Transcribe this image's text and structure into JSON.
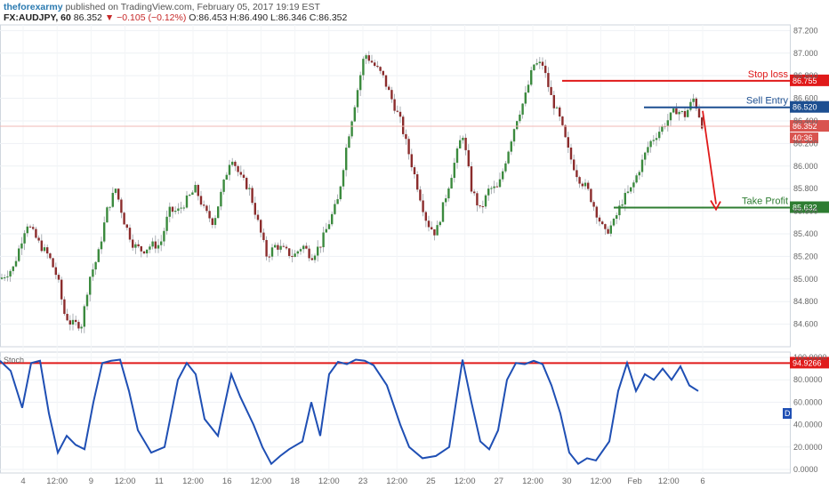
{
  "header": {
    "author": "theforexarmy",
    "published": "published on TradingView.com, February 05, 2017 19:19 EST",
    "symbol": "FX:AUDJPY, 60",
    "last": "86.352",
    "change": "▼ −0.105 (−0.12%)",
    "ohlc": "O:86.453 H:86.490 L:86.346 C:86.352"
  },
  "colors": {
    "up_candle": "#3b8a3e",
    "down_candle": "#8b2c2c",
    "stoch_line": "#1f4fb4",
    "stop_loss": "#e01a1a",
    "sell_entry": "#1d4f91",
    "take_profit": "#2e7d32",
    "arrow": "#e01a1a",
    "last_price": "#d9534f"
  },
  "chart_data": [
    {
      "type": "candlestick",
      "symbol": "FX:AUDJPY",
      "timeframe": "60",
      "ylim": [
        84.4,
        87.25
      ],
      "y_ticks": [
        "87.200",
        "87.000",
        "86.800",
        "86.600",
        "86.400",
        "86.200",
        "86.000",
        "85.800",
        "85.600",
        "85.400",
        "85.200",
        "85.000",
        "84.800",
        "84.600"
      ],
      "x_ticks": [
        "4",
        "12:00",
        "9",
        "12:00",
        "11",
        "12:00",
        "16",
        "12:00",
        "18",
        "12:00",
        "23",
        "12:00",
        "25",
        "12:00",
        "27",
        "12:00",
        "30",
        "12:00",
        "Feb",
        "12:00",
        "6"
      ],
      "path_points": [
        [
          0,
          85.0
        ],
        [
          15,
          85.1
        ],
        [
          30,
          85.5
        ],
        [
          45,
          85.3
        ],
        [
          55,
          85.2
        ],
        [
          65,
          85.0
        ],
        [
          72,
          84.7
        ],
        [
          80,
          84.6
        ],
        [
          92,
          84.6
        ],
        [
          100,
          85.0
        ],
        [
          110,
          85.2
        ],
        [
          120,
          85.6
        ],
        [
          130,
          85.8
        ],
        [
          140,
          85.5
        ],
        [
          150,
          85.3
        ],
        [
          160,
          85.25
        ],
        [
          170,
          85.3
        ],
        [
          180,
          85.3
        ],
        [
          190,
          85.6
        ],
        [
          200,
          85.6
        ],
        [
          210,
          85.7
        ],
        [
          220,
          85.8
        ],
        [
          230,
          85.6
        ],
        [
          240,
          85.5
        ],
        [
          250,
          85.8
        ],
        [
          260,
          86.1
        ],
        [
          270,
          85.9
        ],
        [
          280,
          85.8
        ],
        [
          290,
          85.5
        ],
        [
          300,
          85.2
        ],
        [
          310,
          85.3
        ],
        [
          320,
          85.25
        ],
        [
          330,
          85.2
        ],
        [
          340,
          85.3
        ],
        [
          350,
          85.2
        ],
        [
          360,
          85.3
        ],
        [
          370,
          85.5
        ],
        [
          380,
          85.7
        ],
        [
          390,
          86.2
        ],
        [
          400,
          86.6
        ],
        [
          410,
          87.0
        ],
        [
          420,
          86.9
        ],
        [
          430,
          86.8
        ],
        [
          440,
          86.6
        ],
        [
          450,
          86.4
        ],
        [
          460,
          86.1
        ],
        [
          470,
          85.8
        ],
        [
          480,
          85.5
        ],
        [
          490,
          85.4
        ],
        [
          500,
          85.7
        ],
        [
          510,
          86.0
        ],
        [
          520,
          86.3
        ],
        [
          530,
          85.8
        ],
        [
          540,
          85.6
        ],
        [
          550,
          85.8
        ],
        [
          560,
          85.8
        ],
        [
          570,
          86.1
        ],
        [
          580,
          86.4
        ],
        [
          590,
          86.6
        ],
        [
          600,
          86.9
        ],
        [
          610,
          86.9
        ],
        [
          620,
          86.6
        ],
        [
          630,
          86.4
        ],
        [
          640,
          86.1
        ],
        [
          650,
          85.9
        ],
        [
          660,
          85.8
        ],
        [
          670,
          85.6
        ],
        [
          680,
          85.4
        ],
        [
          690,
          85.5
        ],
        [
          700,
          85.7
        ],
        [
          710,
          85.8
        ],
        [
          720,
          86.0
        ],
        [
          730,
          86.2
        ],
        [
          740,
          86.3
        ],
        [
          750,
          86.4
        ],
        [
          760,
          86.5
        ],
        [
          770,
          86.45
        ],
        [
          780,
          86.6
        ],
        [
          790,
          86.35
        ]
      ],
      "levels": [
        {
          "label": "Stop loss",
          "value": "86.755"
        },
        {
          "label": "Sell Entry",
          "value": "86.520"
        },
        {
          "label": "Take Profit",
          "value": "85.632"
        }
      ],
      "last_price": "86.352",
      "countdown": "40:36"
    },
    {
      "type": "line",
      "indicator": "Stoch",
      "ylim": [
        0,
        100
      ],
      "y_ticks": [
        "100.0000",
        "80.0000",
        "60.0000",
        "40.0000",
        "20.0000",
        "0.0000"
      ],
      "series_points": [
        [
          0,
          97
        ],
        [
          12,
          88
        ],
        [
          25,
          55
        ],
        [
          35,
          95
        ],
        [
          45,
          97
        ],
        [
          55,
          50
        ],
        [
          65,
          15
        ],
        [
          75,
          30
        ],
        [
          85,
          22
        ],
        [
          95,
          18
        ],
        [
          105,
          60
        ],
        [
          115,
          95
        ],
        [
          125,
          97
        ],
        [
          135,
          98
        ],
        [
          145,
          70
        ],
        [
          155,
          35
        ],
        [
          170,
          15
        ],
        [
          185,
          20
        ],
        [
          200,
          80
        ],
        [
          210,
          95
        ],
        [
          220,
          85
        ],
        [
          230,
          45
        ],
        [
          245,
          30
        ],
        [
          260,
          85
        ],
        [
          270,
          65
        ],
        [
          285,
          40
        ],
        [
          295,
          20
        ],
        [
          305,
          5
        ],
        [
          315,
          12
        ],
        [
          325,
          18
        ],
        [
          340,
          25
        ],
        [
          350,
          60
        ],
        [
          360,
          30
        ],
        [
          370,
          85
        ],
        [
          380,
          96
        ],
        [
          390,
          94
        ],
        [
          400,
          98
        ],
        [
          410,
          97
        ],
        [
          420,
          93
        ],
        [
          435,
          75
        ],
        [
          450,
          40
        ],
        [
          460,
          20
        ],
        [
          475,
          10
        ],
        [
          490,
          12
        ],
        [
          505,
          20
        ],
        [
          520,
          98
        ],
        [
          530,
          60
        ],
        [
          540,
          25
        ],
        [
          550,
          18
        ],
        [
          560,
          35
        ],
        [
          570,
          80
        ],
        [
          580,
          95
        ],
        [
          590,
          94
        ],
        [
          600,
          97
        ],
        [
          610,
          94
        ],
        [
          620,
          75
        ],
        [
          630,
          50
        ],
        [
          640,
          15
        ],
        [
          650,
          5
        ],
        [
          660,
          10
        ],
        [
          670,
          8
        ],
        [
          685,
          25
        ],
        [
          695,
          70
        ],
        [
          705,
          95
        ],
        [
          715,
          70
        ],
        [
          725,
          85
        ],
        [
          735,
          80
        ],
        [
          745,
          90
        ],
        [
          755,
          80
        ],
        [
          765,
          92
        ],
        [
          775,
          75
        ],
        [
          785,
          70
        ]
      ],
      "level_value": "94.9266",
      "level_label": "D"
    }
  ]
}
